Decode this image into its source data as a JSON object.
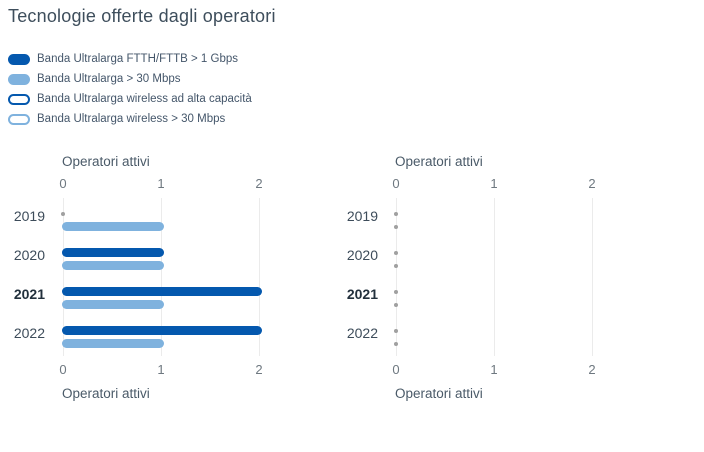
{
  "title": "Tecnologie offerte dagli operatori",
  "colors": {
    "dark_blue": "#0458ae",
    "light_blue": "#7fb2de",
    "zero_dot_gray": "#a0a0a0",
    "gridline": "#ebebeb"
  },
  "legend": {
    "items": [
      {
        "label": "Banda Ultralarga FTTH/FTTB > 1 Gbps",
        "swatch": "filled-dark"
      },
      {
        "label": "Banda Ultralarga > 30 Mbps",
        "swatch": "filled-light"
      },
      {
        "label": "Banda Ultralarga wireless ad alta capacità",
        "swatch": "outline-dark"
      },
      {
        "label": "Banda Ultralarga wireless > 30 Mbps",
        "swatch": "outline-light"
      }
    ]
  },
  "chart_data": [
    {
      "type": "bar",
      "orientation": "horizontal",
      "axis_label_top": "Operatori attivi",
      "axis_label_bottom": "Operatori attivi",
      "categories": [
        "2019",
        "2020",
        "2021",
        "2022"
      ],
      "highlighted_category": "2021",
      "xlim": [
        0,
        2
      ],
      "ticks": [
        0,
        1,
        2
      ],
      "grid": true,
      "legend_position": "top-left-shared",
      "series": [
        {
          "name": "Banda Ultralarga FTTH/FTTB > 1 Gbps",
          "style": "filled-dark",
          "values": [
            0,
            1,
            2,
            2
          ]
        },
        {
          "name": "Banda Ultralarga > 30 Mbps",
          "style": "filled-light",
          "values": [
            1,
            1,
            1,
            1
          ]
        }
      ]
    },
    {
      "type": "bar",
      "orientation": "horizontal",
      "axis_label_top": "Operatori attivi",
      "axis_label_bottom": "Operatori attivi",
      "categories": [
        "2019",
        "2020",
        "2021",
        "2022"
      ],
      "highlighted_category": "2021",
      "xlim": [
        0,
        2
      ],
      "ticks": [
        0,
        1,
        2
      ],
      "grid": true,
      "legend_position": "top-left-shared",
      "series": [
        {
          "name": "Banda Ultralarga wireless ad alta capacità",
          "style": "outline-dark",
          "values": [
            0,
            0,
            0,
            0
          ]
        },
        {
          "name": "Banda Ultralarga wireless > 30 Mbps",
          "style": "outline-light",
          "values": [
            0,
            0,
            0,
            0
          ]
        }
      ]
    }
  ]
}
